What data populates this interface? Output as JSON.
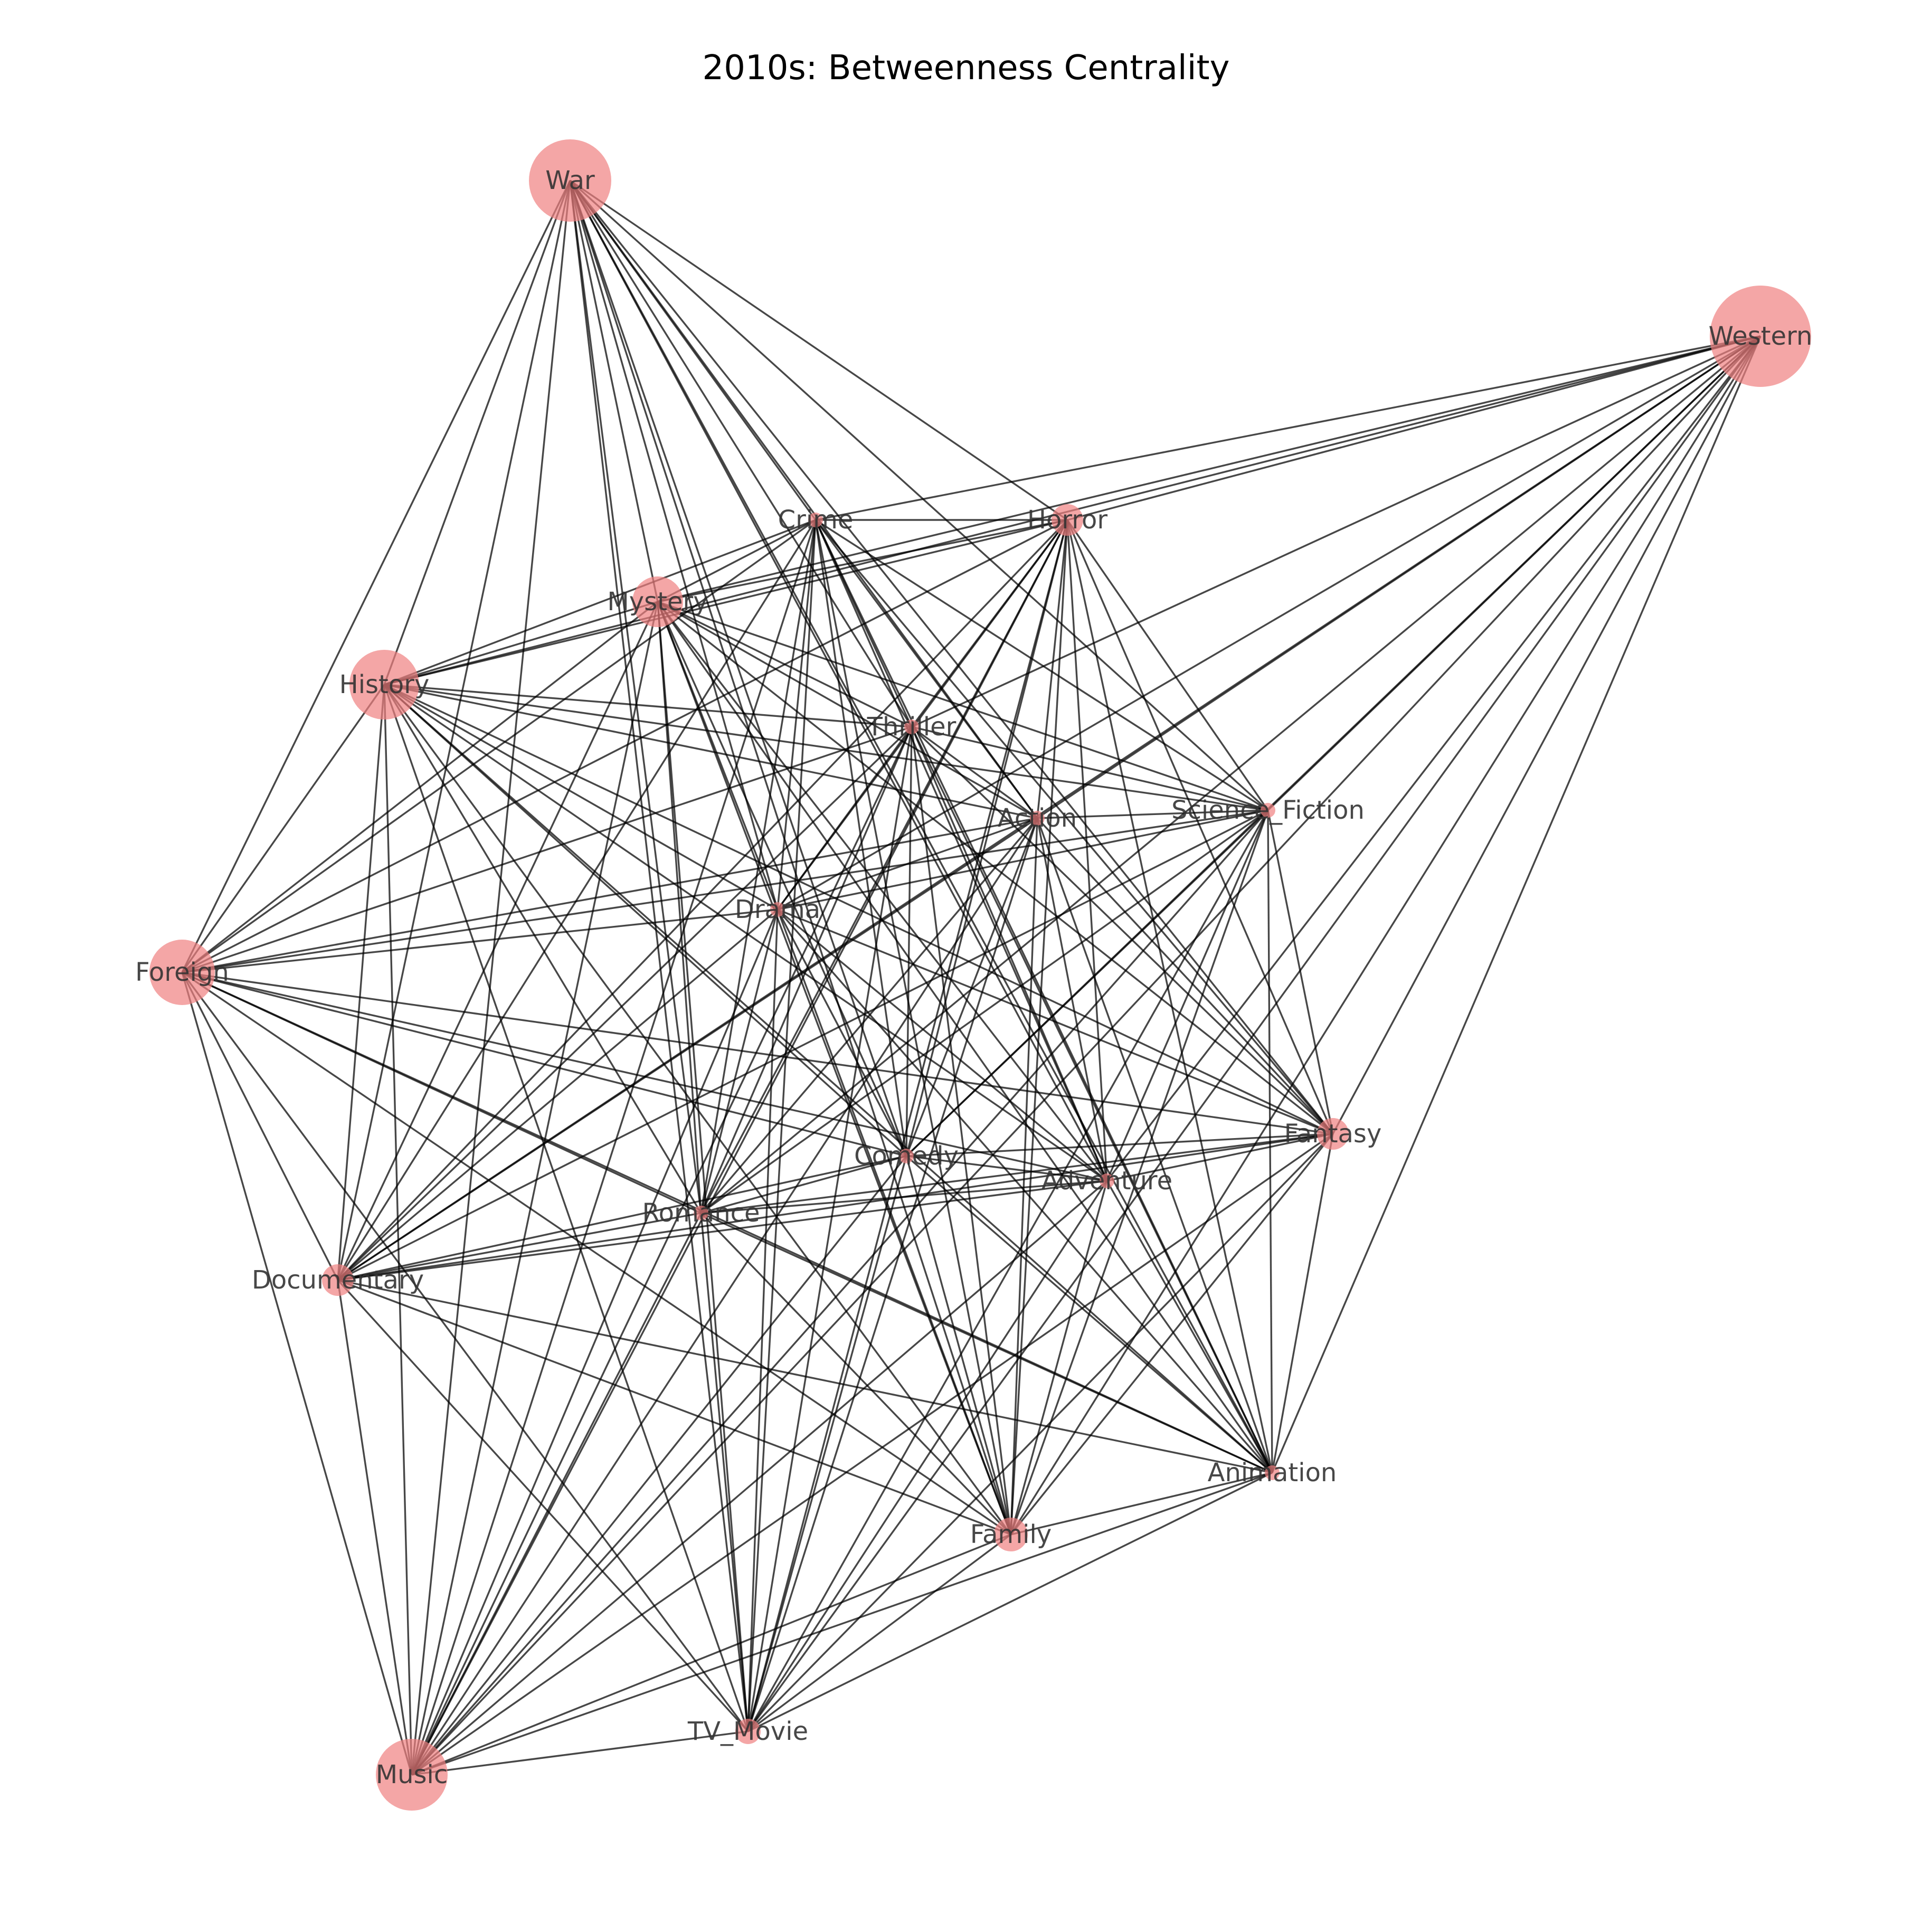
{
  "title": "2010s: Betweenness Centrality",
  "colors": {
    "node_fill": "#f08080",
    "edge": "#000000",
    "label": "#333333",
    "background": "#ffffff"
  },
  "nodes": [
    {
      "id": "War",
      "label": "War"
    },
    {
      "id": "Western",
      "label": "Western"
    },
    {
      "id": "Crime",
      "label": "Crime"
    },
    {
      "id": "Horror",
      "label": "Horror"
    },
    {
      "id": "Mystery",
      "label": "Mystery"
    },
    {
      "id": "History",
      "label": "History"
    },
    {
      "id": "Thriller",
      "label": "Thriller"
    },
    {
      "id": "Action",
      "label": "Action"
    },
    {
      "id": "Science_Fiction",
      "label": "Science_Fiction"
    },
    {
      "id": "Drama",
      "label": "Drama"
    },
    {
      "id": "Foreign",
      "label": "Foreign"
    },
    {
      "id": "Fantasy",
      "label": "Fantasy"
    },
    {
      "id": "Comedy",
      "label": "Comedy"
    },
    {
      "id": "Adventure",
      "label": "Adventure"
    },
    {
      "id": "Romance",
      "label": "Romance"
    },
    {
      "id": "Documentary",
      "label": "Documentary"
    },
    {
      "id": "Animation",
      "label": "Animation"
    },
    {
      "id": "Family",
      "label": "Family"
    },
    {
      "id": "TV_Movie",
      "label": "TV_Movie"
    },
    {
      "id": "Music",
      "label": "Music"
    }
  ],
  "edges": [
    [
      "War",
      "Crime"
    ],
    [
      "War",
      "Horror"
    ],
    [
      "War",
      "Mystery"
    ],
    [
      "War",
      "History"
    ],
    [
      "War",
      "Thriller"
    ],
    [
      "War",
      "Action"
    ],
    [
      "War",
      "Science_Fiction"
    ],
    [
      "War",
      "Drama"
    ],
    [
      "War",
      "Foreign"
    ],
    [
      "War",
      "Fantasy"
    ],
    [
      "War",
      "Comedy"
    ],
    [
      "War",
      "Adventure"
    ],
    [
      "War",
      "Romance"
    ],
    [
      "War",
      "Documentary"
    ],
    [
      "War",
      "Animation"
    ],
    [
      "War",
      "Family"
    ],
    [
      "War",
      "TV_Movie"
    ],
    [
      "War",
      "Music"
    ],
    [
      "Western",
      "Crime"
    ],
    [
      "Western",
      "Horror"
    ],
    [
      "Western",
      "Mystery"
    ],
    [
      "Western",
      "History"
    ],
    [
      "Western",
      "Thriller"
    ],
    [
      "Western",
      "Action"
    ],
    [
      "Western",
      "Science_Fiction"
    ],
    [
      "Western",
      "Drama"
    ],
    [
      "Western",
      "Fantasy"
    ],
    [
      "Western",
      "Comedy"
    ],
    [
      "Western",
      "Adventure"
    ],
    [
      "Western",
      "Romance"
    ],
    [
      "Western",
      "Documentary"
    ],
    [
      "Western",
      "Animation"
    ],
    [
      "Western",
      "Family"
    ],
    [
      "Western",
      "TV_Movie"
    ],
    [
      "Western",
      "Music"
    ],
    [
      "Crime",
      "Horror"
    ],
    [
      "Crime",
      "Mystery"
    ],
    [
      "Crime",
      "History"
    ],
    [
      "Crime",
      "Thriller"
    ],
    [
      "Crime",
      "Action"
    ],
    [
      "Crime",
      "Science_Fiction"
    ],
    [
      "Crime",
      "Drama"
    ],
    [
      "Crime",
      "Foreign"
    ],
    [
      "Crime",
      "Fantasy"
    ],
    [
      "Crime",
      "Comedy"
    ],
    [
      "Crime",
      "Adventure"
    ],
    [
      "Crime",
      "Romance"
    ],
    [
      "Crime",
      "Documentary"
    ],
    [
      "Crime",
      "Animation"
    ],
    [
      "Crime",
      "Family"
    ],
    [
      "Crime",
      "TV_Movie"
    ],
    [
      "Crime",
      "Music"
    ],
    [
      "Horror",
      "Mystery"
    ],
    [
      "Horror",
      "History"
    ],
    [
      "Horror",
      "Thriller"
    ],
    [
      "Horror",
      "Action"
    ],
    [
      "Horror",
      "Science_Fiction"
    ],
    [
      "Horror",
      "Drama"
    ],
    [
      "Horror",
      "Foreign"
    ],
    [
      "Horror",
      "Fantasy"
    ],
    [
      "Horror",
      "Comedy"
    ],
    [
      "Horror",
      "Adventure"
    ],
    [
      "Horror",
      "Romance"
    ],
    [
      "Horror",
      "Documentary"
    ],
    [
      "Horror",
      "Animation"
    ],
    [
      "Horror",
      "Family"
    ],
    [
      "Horror",
      "TV_Movie"
    ],
    [
      "Horror",
      "Music"
    ],
    [
      "Mystery",
      "History"
    ],
    [
      "Mystery",
      "Thriller"
    ],
    [
      "Mystery",
      "Action"
    ],
    [
      "Mystery",
      "Science_Fiction"
    ],
    [
      "Mystery",
      "Drama"
    ],
    [
      "Mystery",
      "Foreign"
    ],
    [
      "Mystery",
      "Fantasy"
    ],
    [
      "Mystery",
      "Comedy"
    ],
    [
      "Mystery",
      "Adventure"
    ],
    [
      "Mystery",
      "Romance"
    ],
    [
      "Mystery",
      "Documentary"
    ],
    [
      "Mystery",
      "Animation"
    ],
    [
      "Mystery",
      "Family"
    ],
    [
      "Mystery",
      "TV_Movie"
    ],
    [
      "Mystery",
      "Music"
    ],
    [
      "History",
      "Thriller"
    ],
    [
      "History",
      "Action"
    ],
    [
      "History",
      "Science_Fiction"
    ],
    [
      "History",
      "Drama"
    ],
    [
      "History",
      "Foreign"
    ],
    [
      "History",
      "Fantasy"
    ],
    [
      "History",
      "Comedy"
    ],
    [
      "History",
      "Adventure"
    ],
    [
      "History",
      "Romance"
    ],
    [
      "History",
      "Documentary"
    ],
    [
      "History",
      "Animation"
    ],
    [
      "History",
      "Family"
    ],
    [
      "History",
      "TV_Movie"
    ],
    [
      "History",
      "Music"
    ],
    [
      "Thriller",
      "Action"
    ],
    [
      "Thriller",
      "Science_Fiction"
    ],
    [
      "Thriller",
      "Drama"
    ],
    [
      "Thriller",
      "Foreign"
    ],
    [
      "Thriller",
      "Fantasy"
    ],
    [
      "Thriller",
      "Comedy"
    ],
    [
      "Thriller",
      "Adventure"
    ],
    [
      "Thriller",
      "Romance"
    ],
    [
      "Thriller",
      "Documentary"
    ],
    [
      "Thriller",
      "Animation"
    ],
    [
      "Thriller",
      "Family"
    ],
    [
      "Thriller",
      "TV_Movie"
    ],
    [
      "Thriller",
      "Music"
    ],
    [
      "Action",
      "Science_Fiction"
    ],
    [
      "Action",
      "Drama"
    ],
    [
      "Action",
      "Foreign"
    ],
    [
      "Action",
      "Fantasy"
    ],
    [
      "Action",
      "Comedy"
    ],
    [
      "Action",
      "Adventure"
    ],
    [
      "Action",
      "Romance"
    ],
    [
      "Action",
      "Documentary"
    ],
    [
      "Action",
      "Animation"
    ],
    [
      "Action",
      "Family"
    ],
    [
      "Action",
      "TV_Movie"
    ],
    [
      "Action",
      "Music"
    ],
    [
      "Science_Fiction",
      "Drama"
    ],
    [
      "Science_Fiction",
      "Foreign"
    ],
    [
      "Science_Fiction",
      "Fantasy"
    ],
    [
      "Science_Fiction",
      "Comedy"
    ],
    [
      "Science_Fiction",
      "Adventure"
    ],
    [
      "Science_Fiction",
      "Romance"
    ],
    [
      "Science_Fiction",
      "Documentary"
    ],
    [
      "Science_Fiction",
      "Animation"
    ],
    [
      "Science_Fiction",
      "Family"
    ],
    [
      "Science_Fiction",
      "TV_Movie"
    ],
    [
      "Science_Fiction",
      "Music"
    ],
    [
      "Drama",
      "Foreign"
    ],
    [
      "Drama",
      "Fantasy"
    ],
    [
      "Drama",
      "Comedy"
    ],
    [
      "Drama",
      "Adventure"
    ],
    [
      "Drama",
      "Romance"
    ],
    [
      "Drama",
      "Documentary"
    ],
    [
      "Drama",
      "Animation"
    ],
    [
      "Drama",
      "Family"
    ],
    [
      "Drama",
      "TV_Movie"
    ],
    [
      "Drama",
      "Music"
    ],
    [
      "Foreign",
      "Fantasy"
    ],
    [
      "Foreign",
      "Comedy"
    ],
    [
      "Foreign",
      "Adventure"
    ],
    [
      "Foreign",
      "Romance"
    ],
    [
      "Foreign",
      "Documentary"
    ],
    [
      "Foreign",
      "Animation"
    ],
    [
      "Foreign",
      "Family"
    ],
    [
      "Foreign",
      "TV_Movie"
    ],
    [
      "Foreign",
      "Music"
    ],
    [
      "Fantasy",
      "Comedy"
    ],
    [
      "Fantasy",
      "Adventure"
    ],
    [
      "Fantasy",
      "Romance"
    ],
    [
      "Fantasy",
      "Documentary"
    ],
    [
      "Fantasy",
      "Animation"
    ],
    [
      "Fantasy",
      "Family"
    ],
    [
      "Fantasy",
      "TV_Movie"
    ],
    [
      "Fantasy",
      "Music"
    ],
    [
      "Comedy",
      "Adventure"
    ],
    [
      "Comedy",
      "Romance"
    ],
    [
      "Comedy",
      "Documentary"
    ],
    [
      "Comedy",
      "Animation"
    ],
    [
      "Comedy",
      "Family"
    ],
    [
      "Comedy",
      "TV_Movie"
    ],
    [
      "Comedy",
      "Music"
    ],
    [
      "Adventure",
      "Romance"
    ],
    [
      "Adventure",
      "Documentary"
    ],
    [
      "Adventure",
      "Animation"
    ],
    [
      "Adventure",
      "Family"
    ],
    [
      "Adventure",
      "TV_Movie"
    ],
    [
      "Adventure",
      "Music"
    ],
    [
      "Romance",
      "Documentary"
    ],
    [
      "Romance",
      "Animation"
    ],
    [
      "Romance",
      "Family"
    ],
    [
      "Romance",
      "TV_Movie"
    ],
    [
      "Romance",
      "Music"
    ],
    [
      "Documentary",
      "Animation"
    ],
    [
      "Documentary",
      "Family"
    ],
    [
      "Documentary",
      "TV_Movie"
    ],
    [
      "Documentary",
      "Music"
    ],
    [
      "Animation",
      "Family"
    ],
    [
      "Animation",
      "TV_Movie"
    ],
    [
      "Animation",
      "Music"
    ],
    [
      "Family",
      "TV_Movie"
    ],
    [
      "Family",
      "Music"
    ],
    [
      "TV_Movie",
      "Music"
    ]
  ]
}
